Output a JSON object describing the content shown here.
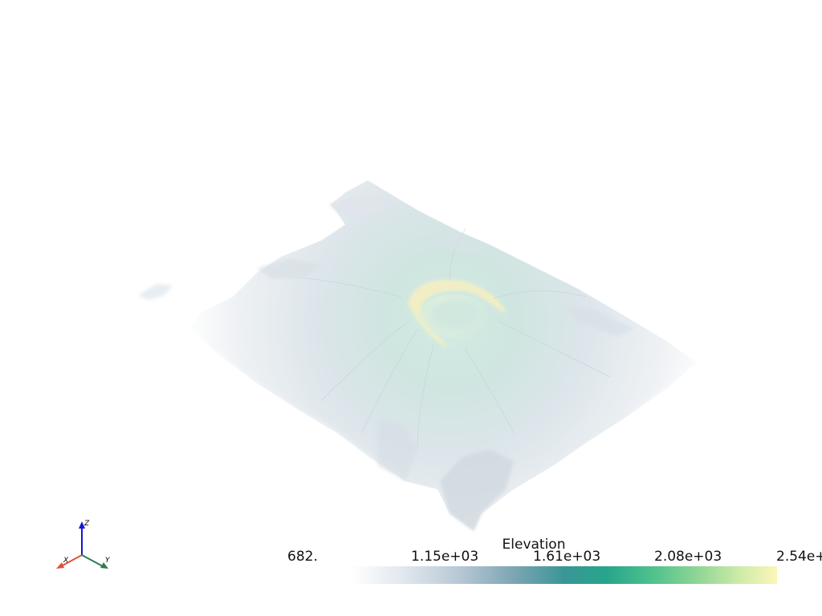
{
  "viewport": {
    "scene": "3d-terrain-surface",
    "colormap": [
      "#ffffff",
      "#b9c9d6",
      "#3a9696",
      "#4cbf8c",
      "#fbf6b8"
    ]
  },
  "axes": {
    "x_label": "X",
    "y_label": "Y",
    "z_label": "Z",
    "x_color": "#e0533a",
    "y_color": "#2e7d4f",
    "z_color": "#1515d0"
  },
  "scalar_bar": {
    "title": "Elevation",
    "ticks": [
      "682.",
      "1.15e+03",
      "1.61e+03",
      "2.08e+03",
      "2.54e+"
    ]
  }
}
